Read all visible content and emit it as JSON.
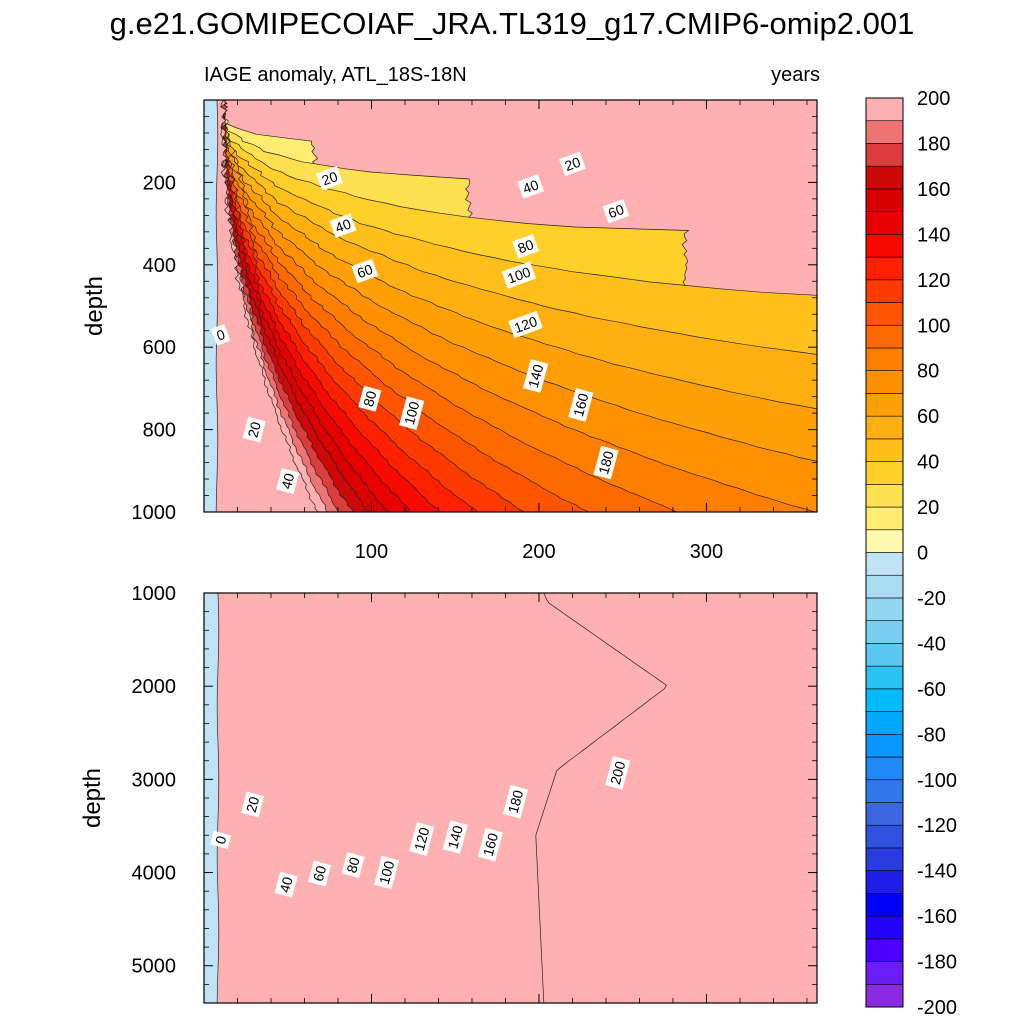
{
  "figure_title": "g.e21.GOMIPECOIAF_JRA.TL319_g17.CMIP6-omip2.001",
  "chart_data": [
    {
      "type": "heatmap",
      "panel": "upper",
      "subtitle_left": "IAGE anomaly, ATL_18S-18N",
      "subtitle_right": "years",
      "ylabel": "depth",
      "xlim": [
        0,
        366
      ],
      "ylim": [
        0,
        1000
      ],
      "y_reversed": true,
      "x_ticks": [
        100,
        200,
        300
      ],
      "x_tick_labels": [
        "100",
        "200",
        "300"
      ],
      "y_ticks": [
        200,
        400,
        600,
        800,
        1000
      ],
      "y_tick_labels": [
        "200",
        "400",
        "600",
        "800",
        "1000"
      ],
      "contour_labels": [
        {
          "text": "0",
          "x": 10,
          "y": 570
        },
        {
          "text": "20",
          "x": 30,
          "y": 800
        },
        {
          "text": "40",
          "x": 50,
          "y": 925
        },
        {
          "text": "20",
          "x": 75,
          "y": 190
        },
        {
          "text": "40",
          "x": 83,
          "y": 305
        },
        {
          "text": "60",
          "x": 96,
          "y": 415
        },
        {
          "text": "80",
          "x": 99,
          "y": 725
        },
        {
          "text": "100",
          "x": 124,
          "y": 760
        },
        {
          "text": "20",
          "x": 220,
          "y": 155
        },
        {
          "text": "40",
          "x": 195,
          "y": 210
        },
        {
          "text": "60",
          "x": 246,
          "y": 270
        },
        {
          "text": "80",
          "x": 192,
          "y": 355
        },
        {
          "text": "100",
          "x": 188,
          "y": 425
        },
        {
          "text": "120",
          "x": 192,
          "y": 545
        },
        {
          "text": "140",
          "x": 198,
          "y": 670
        },
        {
          "text": "160",
          "x": 225,
          "y": 740
        },
        {
          "text": "180",
          "x": 240,
          "y": 880
        }
      ]
    },
    {
      "type": "heatmap",
      "panel": "lower",
      "subtitle_left": "",
      "subtitle_right": "",
      "ylabel": "depth",
      "xlim": [
        0,
        366
      ],
      "ylim": [
        1000,
        5400
      ],
      "y_reversed": true,
      "x_ticks": [
        100,
        200,
        300
      ],
      "x_tick_labels": [
        "",
        "",
        ""
      ],
      "y_ticks": [
        1000,
        2000,
        3000,
        4000,
        5000
      ],
      "y_tick_labels": [
        "1000",
        "2000",
        "3000",
        "4000",
        "5000"
      ],
      "contour_labels": [
        {
          "text": "0",
          "x": 10,
          "y": 3650
        },
        {
          "text": "20",
          "x": 29,
          "y": 3270
        },
        {
          "text": "40",
          "x": 49,
          "y": 4130
        },
        {
          "text": "60",
          "x": 69,
          "y": 4010
        },
        {
          "text": "80",
          "x": 89,
          "y": 3920
        },
        {
          "text": "100",
          "x": 109,
          "y": 4000
        },
        {
          "text": "120",
          "x": 130,
          "y": 3640
        },
        {
          "text": "140",
          "x": 150,
          "y": 3620
        },
        {
          "text": "160",
          "x": 171,
          "y": 3700
        },
        {
          "text": "180",
          "x": 186,
          "y": 3240
        },
        {
          "text": "200",
          "x": 247,
          "y": 2930
        }
      ]
    }
  ],
  "colorbar": {
    "levels": [
      -200,
      -190,
      -180,
      -170,
      -160,
      -150,
      -140,
      -130,
      -120,
      -110,
      -100,
      -90,
      -80,
      -70,
      -60,
      -50,
      -40,
      -30,
      -20,
      -10,
      0,
      10,
      20,
      30,
      40,
      50,
      60,
      70,
      80,
      90,
      100,
      110,
      120,
      130,
      140,
      150,
      160,
      170,
      180,
      190,
      200
    ],
    "tick_labels": [
      "-200",
      "-180",
      "-160",
      "-140",
      "-120",
      "-100",
      "-80",
      "-60",
      "-40",
      "-20",
      "0",
      "20",
      "40",
      "60",
      "80",
      "100",
      "120",
      "140",
      "160",
      "180",
      "200"
    ],
    "colors": [
      "#8a2be2",
      "#6a1ef5",
      "#4b00ff",
      "#2400ff",
      "#0000f5",
      "#1e1ee8",
      "#2a3ce0",
      "#3050e0",
      "#3a66e0",
      "#2f78ec",
      "#1e88f5",
      "#0a96ff",
      "#00a8ff",
      "#00bdff",
      "#2ac2f2",
      "#5ac8f0",
      "#78cef0",
      "#92d6f2",
      "#a8dcf0",
      "#c0e4f4",
      "#fff9b0",
      "#ffec70",
      "#ffe050",
      "#ffd02a",
      "#ffc01c",
      "#ffb010",
      "#ffa008",
      "#ff9000",
      "#ff7e00",
      "#ff6a00",
      "#ff5400",
      "#ff3a00",
      "#ff2000",
      "#f80a00",
      "#e80000",
      "#d80000",
      "#cc0808",
      "#dc3c3c",
      "#ee7474",
      "#ffb0b0"
    ]
  }
}
